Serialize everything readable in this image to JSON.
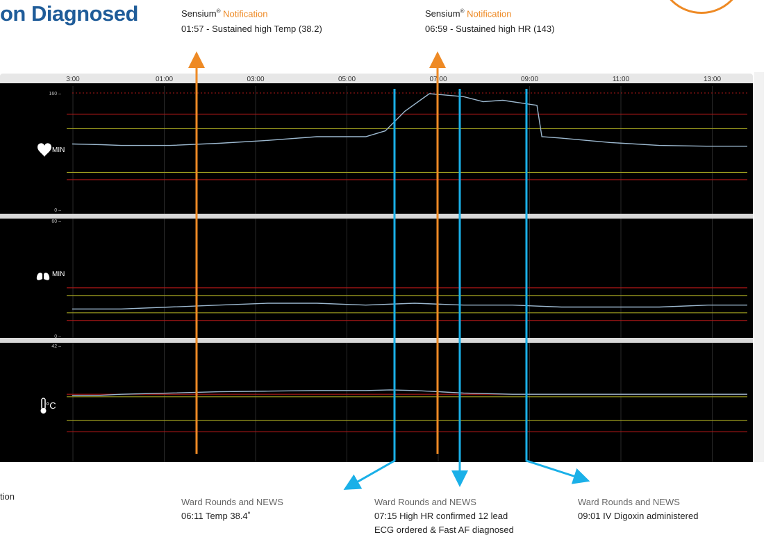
{
  "title": "on Diagnosed",
  "left_cut_text": "tion",
  "colors": {
    "orange": "#ee8a25",
    "blue": "#1ab0e8",
    "trace": "#9cb8cf",
    "title": "#1f5c99"
  },
  "notifications": [
    {
      "brand": "Sensium",
      "mark": "®",
      "keyword": "Notification",
      "text": "01:57 - Sustained high Temp (38.2)"
    },
    {
      "brand": "Sensium",
      "mark": "®",
      "keyword": "Notification",
      "text": "06:59 - Sustained high HR (143)"
    }
  ],
  "ward_rounds": [
    {
      "title": "Ward Rounds and NEWS",
      "lines": [
        "06:11 Temp 38.4˚"
      ]
    },
    {
      "title": "Ward Rounds and NEWS",
      "lines": [
        "07:15 High HR confirmed 12 lead",
        "ECG ordered & Fast AF diagnosed"
      ]
    },
    {
      "title": "Ward Rounds and NEWS",
      "lines": [
        "09:01 IV Digoxin administered"
      ]
    }
  ],
  "chart_data": {
    "type": "line",
    "x_tick_labels": [
      "3:00",
      "01:00",
      "03:00",
      "05:00",
      "07:00",
      "09:00",
      "11:00",
      "13:00"
    ],
    "panels": [
      {
        "unit_label": "MIN",
        "icon": "heart-icon",
        "ymin_label": "0",
        "ymax_label": "160",
        "ylim": [
          0,
          160
        ],
        "thresholds": {
          "red_high": 131,
          "yellow_high": 111,
          "yellow_low": 51,
          "red_low": 41
        },
        "series": [
          {
            "x": 0,
            "y": 90
          },
          {
            "x": 0.6,
            "y": 89
          },
          {
            "x": 1,
            "y": 88
          },
          {
            "x": 2,
            "y": 88
          },
          {
            "x": 3,
            "y": 91
          },
          {
            "x": 4,
            "y": 95
          },
          {
            "x": 5,
            "y": 100
          },
          {
            "x": 6,
            "y": 100
          },
          {
            "x": 6.4,
            "y": 108
          },
          {
            "x": 6.8,
            "y": 135
          },
          {
            "x": 7.3,
            "y": 159
          },
          {
            "x": 8,
            "y": 155
          },
          {
            "x": 8.4,
            "y": 148
          },
          {
            "x": 8.8,
            "y": 150
          },
          {
            "x": 9.2,
            "y": 146
          },
          {
            "x": 9.5,
            "y": 143
          },
          {
            "x": 9.6,
            "y": 100
          },
          {
            "x": 10,
            "y": 98
          },
          {
            "x": 11,
            "y": 92
          },
          {
            "x": 12,
            "y": 88
          },
          {
            "x": 13,
            "y": 87
          },
          {
            "x": 13.8,
            "y": 87
          }
        ]
      },
      {
        "unit_label": "MIN",
        "icon": "lungs-icon",
        "ymin_label": "0",
        "ymax_label": "60",
        "ylim": [
          0,
          60
        ],
        "thresholds": {
          "red_high": 25,
          "yellow_high": 21,
          "yellow_low": 12,
          "red_low": 8
        },
        "series": [
          {
            "x": 0,
            "y": 14
          },
          {
            "x": 1,
            "y": 14
          },
          {
            "x": 2,
            "y": 15
          },
          {
            "x": 3,
            "y": 16
          },
          {
            "x": 4,
            "y": 17
          },
          {
            "x": 5,
            "y": 17
          },
          {
            "x": 6,
            "y": 16
          },
          {
            "x": 7,
            "y": 17
          },
          {
            "x": 8,
            "y": 16
          },
          {
            "x": 9,
            "y": 16
          },
          {
            "x": 10,
            "y": 15
          },
          {
            "x": 11,
            "y": 15
          },
          {
            "x": 12,
            "y": 15
          },
          {
            "x": 13,
            "y": 16
          },
          {
            "x": 13.8,
            "y": 16
          }
        ]
      },
      {
        "unit_label": "°C",
        "icon": "thermometer-icon",
        "ymin_label": "",
        "ymax_label": "42",
        "ylim": [
          33,
          42
        ],
        "thresholds": {
          "red_high": 38.1,
          "yellow_high": 37.9,
          "yellow_low": 36.0,
          "red_low": 35.1
        },
        "series": [
          {
            "x": 0,
            "y": 38.0
          },
          {
            "x": 0.5,
            "y": 38.0
          },
          {
            "x": 1,
            "y": 38.1
          },
          {
            "x": 2,
            "y": 38.2
          },
          {
            "x": 3,
            "y": 38.3
          },
          {
            "x": 4,
            "y": 38.35
          },
          {
            "x": 5,
            "y": 38.4
          },
          {
            "x": 6,
            "y": 38.4
          },
          {
            "x": 6.5,
            "y": 38.45
          },
          {
            "x": 7,
            "y": 38.4
          },
          {
            "x": 7.5,
            "y": 38.3
          },
          {
            "x": 8,
            "y": 38.2
          },
          {
            "x": 9,
            "y": 38.1
          },
          {
            "x": 10,
            "y": 38.1
          },
          {
            "x": 11,
            "y": 38.1
          },
          {
            "x": 12,
            "y": 38.1
          },
          {
            "x": 13.8,
            "y": 38.1
          }
        ]
      }
    ],
    "events": [
      {
        "time": "01:57",
        "source": "Sensium",
        "color": "orange"
      },
      {
        "time": "06:59",
        "source": "Sensium",
        "color": "orange"
      },
      {
        "time": "06:11",
        "source": "Ward Rounds",
        "color": "blue"
      },
      {
        "time": "07:15",
        "source": "Ward Rounds",
        "color": "blue"
      },
      {
        "time": "09:01",
        "source": "Ward Rounds",
        "color": "blue"
      }
    ]
  }
}
